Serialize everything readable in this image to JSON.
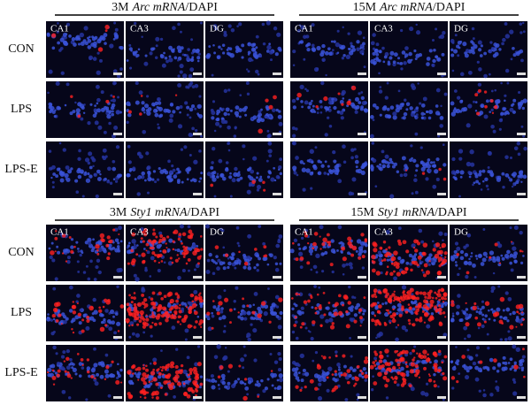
{
  "row_labels": [
    "CON",
    "LPS",
    "LPS-E"
  ],
  "column_labels": [
    "CA1",
    "CA3",
    "DG"
  ],
  "blocks": [
    {
      "panels": [
        {
          "prefix": "3M",
          "gene": "Arc mRNA",
          "suffix": "/DAPI"
        },
        {
          "prefix": "15M",
          "gene": "Arc mRNA",
          "suffix": "/DAPI"
        }
      ]
    },
    {
      "panels": [
        {
          "prefix": "3M",
          "gene": "Sty1 mRNA",
          "suffix": "/DAPI"
        },
        {
          "prefix": "15M",
          "gene": "Sty1 mRNA",
          "suffix": "/DAPI"
        }
      ]
    }
  ]
}
